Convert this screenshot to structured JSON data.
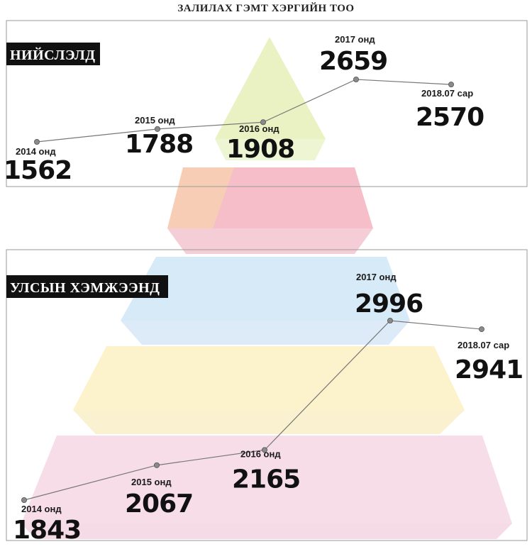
{
  "title": "ЗАЛИЛАХ ГЭМТ ХЭРГИЙН ТОО",
  "colors": {
    "pyramid_top": "#e6f0b8",
    "pyramid_red": "#f2a8b4",
    "pyramid_blue": "#cfe6f5",
    "pyramid_yellow": "#fbf1c6",
    "pyramid_pink": "#f6d8e6",
    "line": "#777777",
    "tag_bg": "#111111"
  },
  "chart_data": [
    {
      "type": "line",
      "title": "НИЙСЛЭЛД",
      "categories": [
        "2014 онд",
        "2015 онд",
        "2016 онд",
        "2017 онд",
        "2018.07 сар"
      ],
      "series": [
        {
          "values": [
            1562,
            1788,
            1908,
            2659,
            2570
          ]
        }
      ],
      "grid": false
    },
    {
      "type": "line",
      "title": "УЛСЫН ХЭМЖЭЭНД",
      "categories": [
        "2014 онд",
        "2015 онд",
        "2016 онд",
        "2017 онд",
        "2018.07 сар"
      ],
      "series": [
        {
          "values": [
            1843,
            2067,
            2165,
            2996,
            2941
          ]
        }
      ],
      "grid": false
    }
  ]
}
